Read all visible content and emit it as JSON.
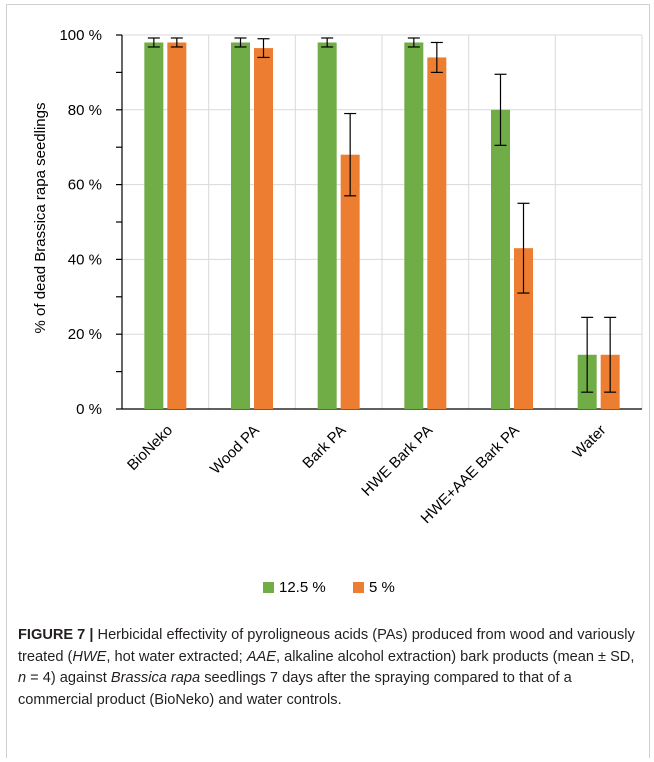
{
  "chart_data": {
    "type": "bar",
    "categories": [
      "BioNeko",
      "Wood PA",
      "Bark PA",
      "HWE Bark PA",
      "HWE+AAE Bark PA",
      "Water"
    ],
    "series": [
      {
        "name": "12.5 %",
        "color": "#70ad47",
        "values": [
          98,
          98,
          98,
          98,
          80,
          14.5
        ],
        "errors": [
          1.2,
          1.2,
          1.2,
          1.2,
          9.5,
          10
        ]
      },
      {
        "name": "5 %",
        "color": "#ed7d31",
        "values": [
          98,
          96.5,
          68,
          94,
          43,
          14.5
        ],
        "errors": [
          1.2,
          2.5,
          11,
          4,
          12,
          10
        ]
      }
    ],
    "yticks": [
      "0 %",
      "20 %",
      "40 %",
      "60 %",
      "80 %",
      "100 %"
    ],
    "ylabel": "% of dead Brassica rapa seedlings",
    "xlabel": "",
    "ylim": [
      0,
      100
    ],
    "legend_position": "bottom"
  },
  "caption": {
    "label": "FIGURE 7",
    "separator": "|",
    "parts": [
      {
        "t": " Herbicidal effectivity of pyroligneous acids (PAs) produced from wood and variously treated (",
        "i": false
      },
      {
        "t": "HWE",
        "i": true
      },
      {
        "t": ", hot water extracted; ",
        "i": false
      },
      {
        "t": "AAE",
        "i": true
      },
      {
        "t": ", alkaline alcohol extraction) bark products (mean ± SD, ",
        "i": false
      },
      {
        "t": "n",
        "i": true
      },
      {
        "t": " = 4) against ",
        "i": false
      },
      {
        "t": "Brassica rapa",
        "i": true
      },
      {
        "t": " seedlings 7 days after the spraying compared to that of a commercial product (BioNeko) and water controls.",
        "i": false
      }
    ]
  }
}
